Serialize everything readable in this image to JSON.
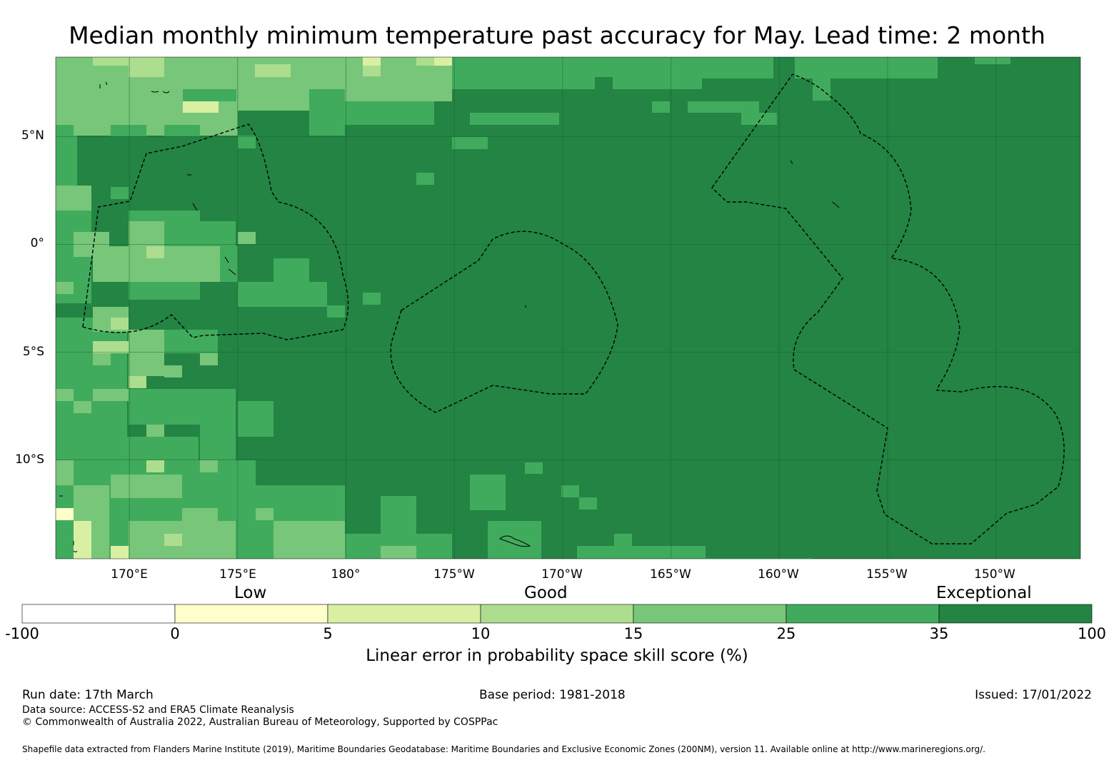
{
  "title": "Median monthly minimum temperature past accuracy for May. Lead time: 2 month",
  "map": {
    "lat_labels": [
      "5°N",
      "0°",
      "5°S",
      "10°S"
    ],
    "lon_labels": [
      "170°E",
      "175°E",
      "180°",
      "175°W",
      "170°W",
      "165°W",
      "160°W",
      "155°W",
      "150°W"
    ],
    "extent": {
      "lon_west": 166.6,
      "lon_east": 213.9,
      "lat_south": -14.6,
      "lat_north": 8.7
    }
  },
  "colorbar": {
    "categories": [
      "Low",
      "Good",
      "Exceptional"
    ],
    "bounds": [
      "-100",
      "0",
      "5",
      "10",
      "15",
      "25",
      "35",
      "100"
    ],
    "colors": [
      "#ffffff",
      "#ffffcc",
      "#d9f0a3",
      "#addd8e",
      "#78c679",
      "#41ab5d",
      "#238443"
    ],
    "label": "Linear error in probability space skill score (%)"
  },
  "footer": {
    "run_date": "Run date: 17th March",
    "base_period": "Base period: 1981-2018",
    "issued": "Issued: 17/01/2022",
    "data_source": "Data source: ACCESS-S2 and ERA5 Climate Reanalysis",
    "copyright": "© Commonwealth of Australia 2022, Australian Bureau of Meteorology, Supported by COSPPac",
    "shapefile": "Shapefile data extracted from Flanders Marine Institute (2019), Maritime Boundaries Geodatabase: Maritime Boundaries and Exclusive Economic Zones (200NM), version 11. Available online at http://www.marineregions.org/."
  }
}
